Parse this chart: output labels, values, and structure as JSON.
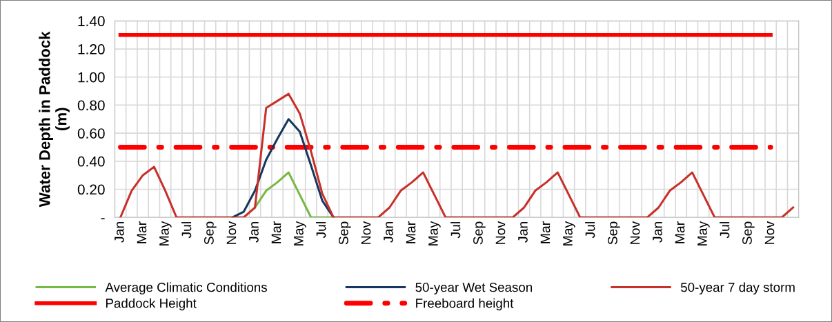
{
  "chart_data": {
    "type": "line",
    "ylabel": "Water Depth in Paddock\n(m)",
    "categories": [
      "Jan",
      null,
      "Mar",
      null,
      "May",
      null,
      "Jul",
      null,
      "Sep",
      null,
      "Nov",
      null,
      "Jan",
      null,
      "Mar",
      null,
      "May",
      null,
      "Jul",
      null,
      "Sep",
      null,
      "Nov",
      null,
      "Jan",
      null,
      "Mar",
      null,
      "May",
      null,
      "Jul",
      null,
      "Sep",
      null,
      "Nov",
      null,
      "Jan",
      null,
      "Mar",
      null,
      "May",
      null,
      "Jul",
      null,
      "Sep",
      null,
      "Nov",
      null,
      "Jan",
      null,
      "Mar",
      null,
      "May",
      null,
      "Jul",
      null,
      "Sep",
      null,
      "Nov",
      null,
      null
    ],
    "series": [
      {
        "name": "Average Climatic Conditions",
        "color": "#77b843",
        "values": [
          null,
          null,
          null,
          null,
          null,
          null,
          null,
          null,
          null,
          null,
          null,
          null,
          0.07,
          0.19,
          0.25,
          0.32,
          0.16,
          0,
          0,
          0,
          null,
          null,
          null,
          null,
          null,
          null,
          null,
          null,
          null,
          null,
          null,
          null,
          null,
          null,
          null,
          null,
          null,
          null,
          null,
          null,
          null,
          null,
          null,
          null,
          null,
          null,
          null,
          null,
          null,
          null,
          null,
          null,
          null,
          null,
          null,
          null,
          null,
          null,
          null,
          null,
          null
        ]
      },
      {
        "name": "50-year Wet Season",
        "color": "#17375e",
        "values": [
          null,
          null,
          null,
          null,
          null,
          null,
          null,
          null,
          null,
          null,
          0,
          0.04,
          0.19,
          0.41,
          0.56,
          0.7,
          0.61,
          0.37,
          0.12,
          0,
          null,
          null,
          null,
          null,
          null,
          null,
          null,
          null,
          null,
          null,
          null,
          null,
          null,
          null,
          null,
          null,
          null,
          null,
          null,
          null,
          null,
          null,
          null,
          null,
          null,
          null,
          null,
          null,
          null,
          null,
          null,
          null,
          null,
          null,
          null,
          null,
          null,
          null,
          null,
          null,
          null
        ]
      },
      {
        "name": "50-year 7 day storm",
        "color": "#c8312b",
        "values": [
          0,
          0.19,
          0.3,
          0.36,
          0.19,
          0,
          0,
          0,
          0,
          0,
          0,
          0,
          0.07,
          0.78,
          0.83,
          0.88,
          0.74,
          0.47,
          0.17,
          0,
          0,
          0,
          0,
          0,
          0.07,
          0.19,
          0.25,
          0.32,
          0.16,
          0,
          0,
          0,
          0,
          0,
          0,
          0,
          0.07,
          0.19,
          0.25,
          0.32,
          0.16,
          0,
          0,
          0,
          0,
          0,
          0,
          0,
          0.07,
          0.19,
          0.25,
          0.32,
          0.16,
          0,
          0,
          0,
          0,
          0,
          0,
          0,
          0.07
        ]
      },
      {
        "name": "Paddock Height",
        "color": "#ff0000",
        "values": [
          1.3,
          1.3,
          1.3,
          1.3,
          1.3,
          1.3,
          1.3,
          1.3,
          1.3,
          1.3,
          1.3,
          1.3,
          1.3,
          1.3,
          1.3,
          1.3,
          1.3,
          1.3,
          1.3,
          1.3,
          1.3,
          1.3,
          1.3,
          1.3,
          1.3,
          1.3,
          1.3,
          1.3,
          1.3,
          1.3,
          1.3,
          1.3,
          1.3,
          1.3,
          1.3,
          1.3,
          1.3,
          1.3,
          1.3,
          1.3,
          1.3,
          1.3,
          1.3,
          1.3,
          1.3,
          1.3,
          1.3,
          1.3,
          1.3,
          1.3,
          1.3,
          1.3,
          1.3,
          1.3,
          1.3,
          1.3,
          1.3,
          1.3,
          1.3,
          null,
          null
        ]
      },
      {
        "name": "Freeboard height",
        "color": "#ff0000",
        "line_style": "dashdot",
        "values": [
          0.5,
          0.5,
          0.5,
          0.5,
          0.5,
          0.5,
          0.5,
          0.5,
          0.5,
          0.5,
          0.5,
          0.5,
          0.5,
          0.5,
          0.5,
          0.5,
          0.5,
          0.5,
          0.5,
          0.5,
          0.5,
          0.5,
          0.5,
          0.5,
          0.5,
          0.5,
          0.5,
          0.5,
          0.5,
          0.5,
          0.5,
          0.5,
          0.5,
          0.5,
          0.5,
          0.5,
          0.5,
          0.5,
          0.5,
          0.5,
          0.5,
          0.5,
          0.5,
          0.5,
          0.5,
          0.5,
          0.5,
          0.5,
          0.5,
          0.5,
          0.5,
          0.5,
          0.5,
          0.5,
          0.5,
          0.5,
          0.5,
          0.5,
          0.5,
          null,
          null
        ]
      }
    ],
    "ylim": [
      0,
      1.4
    ],
    "yticks": [
      {
        "value": 0,
        "label": "-"
      },
      {
        "value": 0.2,
        "label": "0.20"
      },
      {
        "value": 0.4,
        "label": "0.40"
      },
      {
        "value": 0.6,
        "label": "0.60"
      },
      {
        "value": 0.8,
        "label": "0.80"
      },
      {
        "value": 1.0,
        "label": "1.00"
      },
      {
        "value": 1.2,
        "label": "1.20"
      },
      {
        "value": 1.4,
        "label": "1.40"
      }
    ],
    "grid": true,
    "legend": "bottom",
    "marker": "none",
    "line_style": "solid"
  }
}
